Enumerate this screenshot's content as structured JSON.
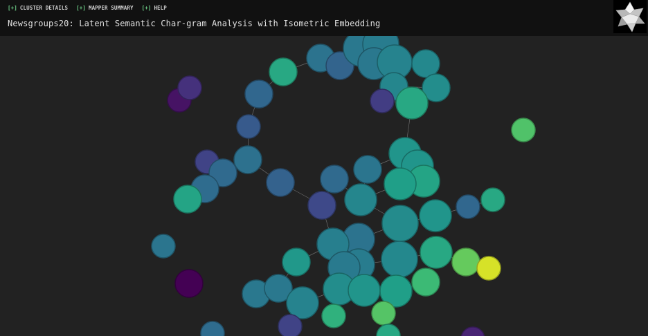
{
  "menu": {
    "items": [
      {
        "prefix": "[+]",
        "label": "CLUSTER DETAILS"
      },
      {
        "prefix": "[+]",
        "label": "MAPPER SUMMARY"
      },
      {
        "prefix": "[+]",
        "label": "HELP"
      }
    ]
  },
  "header": {
    "title": "Newsgroups20: Latent Semantic Char-gram Analysis with Isometric Embedding"
  },
  "logo": {
    "icon": "polyhedron-logo-icon"
  },
  "colors": {
    "background": "#222222",
    "topbar": "#111111",
    "accent": "#6fd18a",
    "edge": "#8a8a8a"
  },
  "graph": {
    "color_scale": "viridis",
    "node_count": 66
  }
}
